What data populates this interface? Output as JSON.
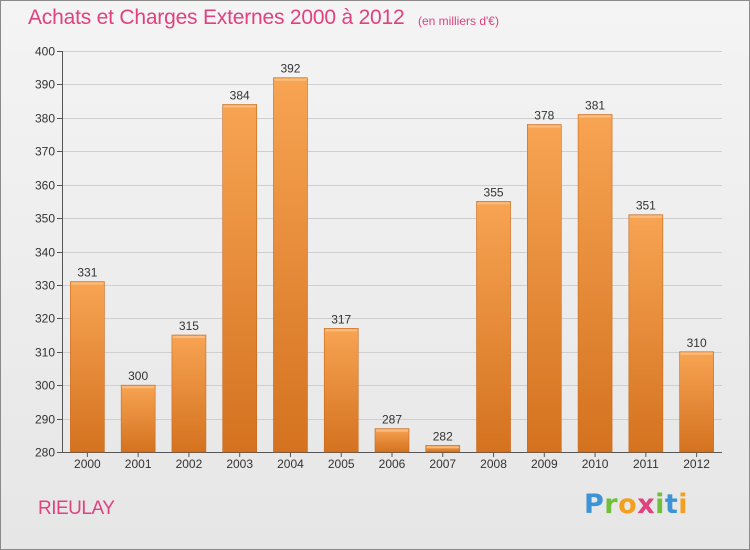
{
  "header": {
    "title": "Achats et Charges Externes 2000 à 2012",
    "subtitle": "(en milliers d'€)"
  },
  "footer": {
    "commune": "RIEULAY",
    "logo_letters": [
      "P",
      "r",
      "o",
      "x",
      "i",
      "t",
      "i"
    ],
    "logo_colors": [
      "#3d93d6",
      "#6fbf3a",
      "#f2a01e",
      "#e0417f",
      "#6fbf3a",
      "#3d93d6",
      "#f2a01e"
    ]
  },
  "chart_data": {
    "type": "bar",
    "title": "Achats et Charges Externes 2000 à 2012",
    "subtitle": "(en milliers d'€)",
    "categories": [
      "2000",
      "2001",
      "2002",
      "2003",
      "2004",
      "2005",
      "2006",
      "2007",
      "2008",
      "2009",
      "2010",
      "2011",
      "2012"
    ],
    "values": [
      331,
      300,
      315,
      384,
      392,
      317,
      287,
      282,
      355,
      378,
      381,
      351,
      310
    ],
    "ylim": [
      280,
      400
    ],
    "yticks": [
      280,
      290,
      300,
      310,
      320,
      330,
      340,
      350,
      360,
      370,
      380,
      390,
      400
    ],
    "grid": true,
    "legend": "none",
    "colors": {
      "bar_top": "#f7a453",
      "bar_bottom": "#d4721f",
      "grid": "#cfcfcf",
      "axis": "#555555",
      "title": "#e0417f"
    }
  }
}
